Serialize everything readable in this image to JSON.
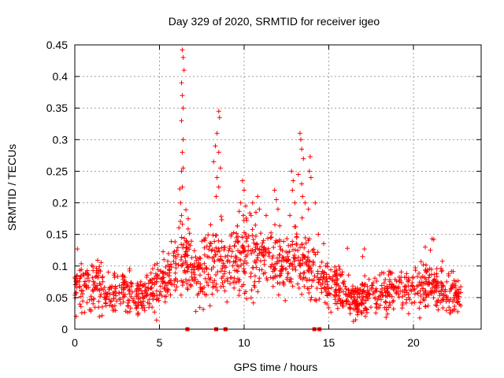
{
  "chart_data": {
    "type": "scatter",
    "title": "Day 329 of 2020, SRMTID for receiver igeo",
    "xlabel": "GPS time / hours",
    "ylabel": "SRMTID / TECUs",
    "xlim": [
      0,
      24
    ],
    "ylim": [
      0,
      0.45
    ],
    "xticks": [
      0,
      5,
      10,
      15,
      20
    ],
    "xtick_labels": [
      "0",
      "5",
      "10",
      "15",
      "20"
    ],
    "yticks": [
      0,
      0.05,
      0.1,
      0.15,
      0.2,
      0.25,
      0.3,
      0.35,
      0.4,
      0.45
    ],
    "ytick_labels": [
      "0",
      "0.05",
      "0.1",
      "0.15",
      "0.2",
      "0.25",
      "0.3",
      "0.35",
      "0.4",
      "0.45"
    ],
    "grid": true,
    "marker": "+",
    "color": "#ff0000",
    "series": [
      {
        "name": "SRMTID",
        "profile_x": [
          0,
          0.5,
          1,
          1.5,
          2,
          2.5,
          3,
          3.5,
          4,
          4.5,
          5,
          5.5,
          6,
          6.5,
          7,
          7.5,
          8,
          8.5,
          9,
          9.5,
          10,
          10.5,
          11,
          11.5,
          12,
          12.5,
          13,
          13.5,
          14,
          14.5,
          15,
          15.5,
          16,
          16.5,
          17,
          17.5,
          18,
          18.5,
          19,
          19.5,
          20,
          20.5,
          21,
          21.5,
          22,
          22.5,
          22.8
        ],
        "profile_y": [
          0.065,
          0.07,
          0.075,
          0.065,
          0.055,
          0.058,
          0.06,
          0.055,
          0.055,
          0.06,
          0.075,
          0.085,
          0.1,
          0.12,
          0.095,
          0.085,
          0.115,
          0.11,
          0.1,
          0.11,
          0.12,
          0.115,
          0.11,
          0.115,
          0.105,
          0.1,
          0.11,
          0.105,
          0.095,
          0.085,
          0.07,
          0.065,
          0.06,
          0.045,
          0.05,
          0.055,
          0.055,
          0.06,
          0.06,
          0.06,
          0.065,
          0.07,
          0.075,
          0.065,
          0.06,
          0.055,
          0.05
        ],
        "highlights": [
          [
            6.35,
            0.442
          ],
          [
            6.4,
            0.43
          ],
          [
            6.45,
            0.41
          ],
          [
            6.3,
            0.39
          ],
          [
            6.35,
            0.37
          ],
          [
            6.4,
            0.35
          ],
          [
            6.3,
            0.33
          ],
          [
            6.4,
            0.3
          ],
          [
            6.35,
            0.28
          ],
          [
            6.4,
            0.255
          ],
          [
            6.3,
            0.25
          ],
          [
            6.35,
            0.225
          ],
          [
            6.2,
            0.222
          ],
          [
            6.25,
            0.2
          ],
          [
            6.3,
            0.18
          ],
          [
            8.5,
            0.345
          ],
          [
            8.55,
            0.335
          ],
          [
            8.4,
            0.31
          ],
          [
            8.3,
            0.29
          ],
          [
            8.5,
            0.28
          ],
          [
            8.2,
            0.265
          ],
          [
            8.6,
            0.255
          ],
          [
            8.4,
            0.24
          ],
          [
            8.5,
            0.225
          ],
          [
            8.35,
            0.21
          ],
          [
            9.9,
            0.235
          ],
          [
            10.0,
            0.22
          ],
          [
            9.8,
            0.2
          ],
          [
            10.1,
            0.195
          ],
          [
            9.95,
            0.18
          ],
          [
            10.5,
            0.2
          ],
          [
            10.7,
            0.185
          ],
          [
            10.8,
            0.21
          ],
          [
            10.9,
            0.19
          ],
          [
            11.3,
            0.18
          ],
          [
            11.8,
            0.22
          ],
          [
            11.9,
            0.205
          ],
          [
            12.0,
            0.19
          ],
          [
            12.8,
            0.25
          ],
          [
            12.9,
            0.235
          ],
          [
            12.85,
            0.22
          ],
          [
            13.0,
            0.2
          ],
          [
            12.7,
            0.18
          ],
          [
            13.3,
            0.31
          ],
          [
            13.35,
            0.3
          ],
          [
            13.4,
            0.285
          ],
          [
            13.5,
            0.27
          ],
          [
            13.2,
            0.245
          ],
          [
            13.4,
            0.23
          ],
          [
            13.45,
            0.21
          ],
          [
            13.9,
            0.273
          ],
          [
            13.85,
            0.25
          ],
          [
            13.95,
            0.24
          ],
          [
            13.6,
            0.2
          ],
          [
            13.8,
            0.19
          ],
          [
            14.2,
            0.2
          ],
          [
            21.1,
            0.143
          ],
          [
            21.2,
            0.142
          ],
          [
            20.7,
            0.13
          ],
          [
            21.0,
            0.125
          ],
          [
            16.1,
            0.128
          ],
          [
            17.1,
            0.127
          ],
          [
            17.0,
            0.115
          ],
          [
            0.15,
            0.127
          ]
        ],
        "zeros": [
          6.65,
          8.35,
          8.9,
          14.15,
          14.45
        ]
      }
    ]
  }
}
